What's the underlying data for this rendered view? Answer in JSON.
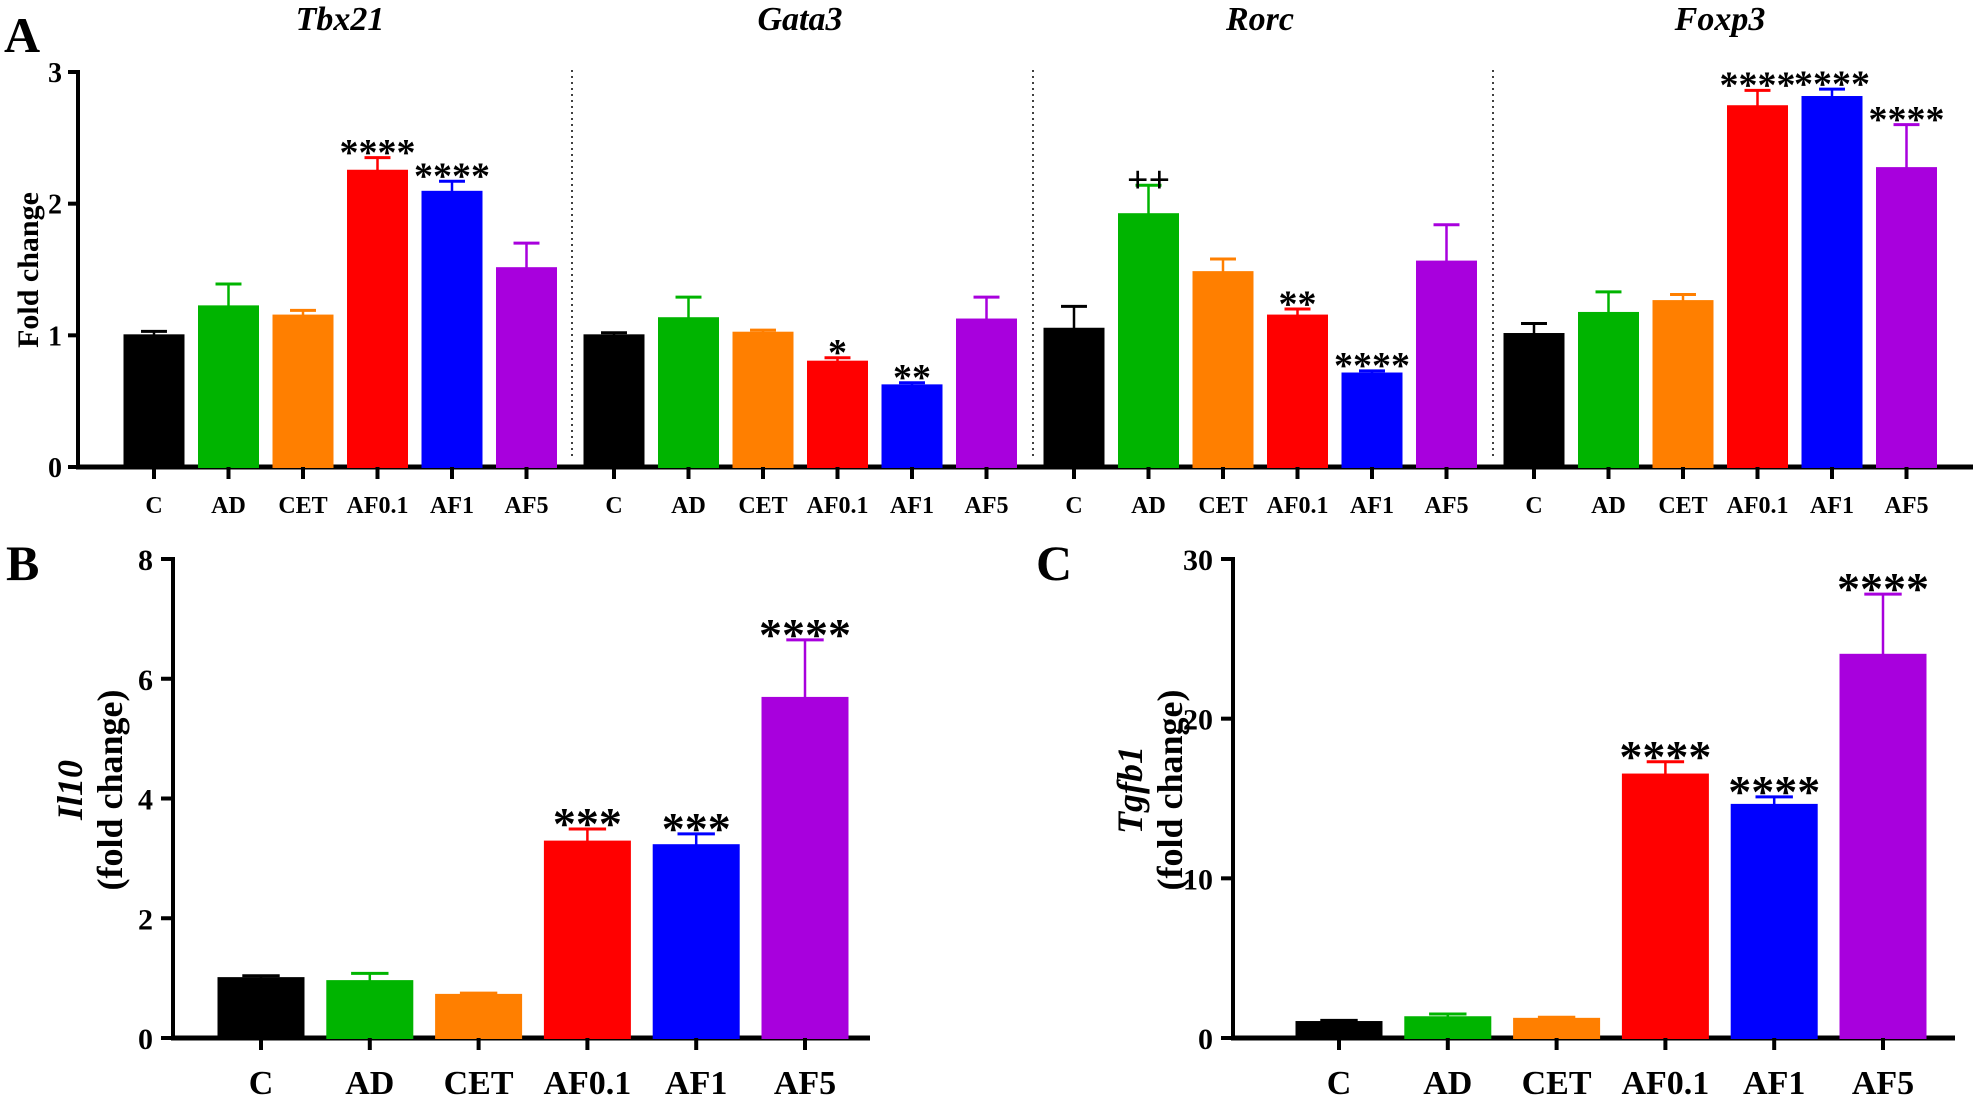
{
  "colors": {
    "C": "#000000",
    "AD": "#00b400",
    "CET": "#ff7f00",
    "AF0.1": "#ff0000",
    "AF1": "#0000ff",
    "AF5": "#a800dd"
  },
  "panels": {
    "A": "A",
    "B": "B",
    "C": "C"
  },
  "chart_data": [
    {
      "panel": "A",
      "type": "bar",
      "title": "Tbx21",
      "ylabel": "Fold change",
      "ylim": [
        0,
        3
      ],
      "yticks": [
        0,
        1,
        2,
        3
      ],
      "categories": [
        "C",
        "AD",
        "CET",
        "AF0.1",
        "AF1",
        "AF5"
      ],
      "values": [
        1.0,
        1.22,
        1.15,
        2.25,
        2.09,
        1.51
      ],
      "errors": [
        0.03,
        0.17,
        0.04,
        0.1,
        0.08,
        0.19
      ],
      "annotations": [
        "",
        "",
        "",
        "****",
        "****",
        ""
      ]
    },
    {
      "panel": "A",
      "type": "bar",
      "title": "Gata3",
      "ylim": [
        0,
        3
      ],
      "categories": [
        "C",
        "AD",
        "CET",
        "AF0.1",
        "AF1",
        "AF5"
      ],
      "values": [
        1.0,
        1.13,
        1.02,
        0.8,
        0.62,
        1.12
      ],
      "errors": [
        0.02,
        0.16,
        0.02,
        0.03,
        0.02,
        0.17
      ],
      "annotations": [
        "",
        "",
        "",
        "*",
        "**",
        ""
      ]
    },
    {
      "panel": "A",
      "type": "bar",
      "title": "Rorc",
      "ylim": [
        0,
        3
      ],
      "categories": [
        "C",
        "AD",
        "CET",
        "AF0.1",
        "AF1",
        "AF5"
      ],
      "values": [
        1.05,
        1.92,
        1.48,
        1.15,
        0.71,
        1.56
      ],
      "errors": [
        0.17,
        0.22,
        0.1,
        0.05,
        0.02,
        0.28
      ],
      "annotations": [
        "",
        "++",
        "",
        "**",
        "****",
        ""
      ]
    },
    {
      "panel": "A",
      "type": "bar",
      "title": "Foxp3",
      "ylim": [
        0,
        3
      ],
      "categories": [
        "C",
        "AD",
        "CET",
        "AF0.1",
        "AF1",
        "AF5"
      ],
      "values": [
        1.01,
        1.17,
        1.26,
        2.74,
        2.81,
        2.27
      ],
      "errors": [
        0.08,
        0.16,
        0.05,
        0.12,
        0.06,
        0.33
      ],
      "annotations": [
        "",
        "",
        "",
        "****",
        "****",
        "****"
      ]
    },
    {
      "panel": "B",
      "type": "bar",
      "ylabel_gene": "Il10",
      "ylabel": "(fold change)",
      "ylim": [
        0,
        8
      ],
      "yticks": [
        0,
        2,
        4,
        6,
        8
      ],
      "categories": [
        "C",
        "AD",
        "CET",
        "AF0.1",
        "AF1",
        "AF5"
      ],
      "values": [
        1.0,
        0.95,
        0.72,
        3.28,
        3.22,
        5.68
      ],
      "errors": [
        0.04,
        0.13,
        0.03,
        0.21,
        0.19,
        0.97
      ],
      "annotations": [
        "",
        "",
        "",
        "***",
        "***",
        "****"
      ]
    },
    {
      "panel": "C",
      "type": "bar",
      "ylabel_gene": "Tgfb1",
      "ylabel": "(fold change)",
      "ylim": [
        0,
        30
      ],
      "yticks": [
        0,
        10,
        20,
        30
      ],
      "categories": [
        "C",
        "AD",
        "CET",
        "AF0.1",
        "AF1",
        "AF5"
      ],
      "values": [
        1.0,
        1.3,
        1.2,
        16.5,
        14.6,
        24.0
      ],
      "errors": [
        0.1,
        0.2,
        0.1,
        0.8,
        0.5,
        3.8
      ],
      "annotations": [
        "",
        "",
        "",
        "****",
        "****",
        "****"
      ]
    }
  ]
}
